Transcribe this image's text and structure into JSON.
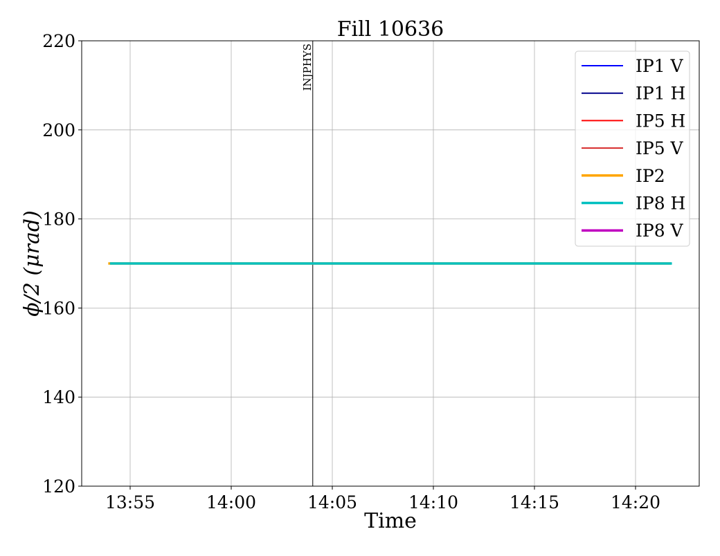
{
  "chart_data": {
    "type": "line",
    "title": "Fill 10636",
    "xlabel": "Time",
    "ylabel": "ϕ/2 (μrad)",
    "ylim": [
      120,
      220
    ],
    "xlim": [
      "13:52:50",
      "14:23:30"
    ],
    "yticks": [
      120,
      140,
      160,
      180,
      200,
      220
    ],
    "xticks": [
      "13:55",
      "14:00",
      "14:05",
      "14:10",
      "14:15",
      "14:20"
    ],
    "grid": true,
    "legend_position": "top-right",
    "annotations": [
      {
        "time": "14:04:02",
        "label": "INJPHYS",
        "color": "#000000"
      }
    ],
    "series": [
      {
        "name": "IP1 V",
        "color": "#0000ff",
        "points": []
      },
      {
        "name": "IP1 H",
        "color": "#00008b",
        "points": []
      },
      {
        "name": "IP5 H",
        "color": "#ff0000",
        "points": []
      },
      {
        "name": "IP5 V",
        "color": "#d62728",
        "points": []
      },
      {
        "name": "IP2",
        "color": "#ffa500",
        "points": [
          [
            "13:53:55",
            170
          ],
          [
            "14:21:45",
            170
          ]
        ]
      },
      {
        "name": "IP8 H",
        "color": "#00c0c0",
        "points": [
          [
            "13:54:00",
            170
          ],
          [
            "14:21:48",
            170
          ]
        ]
      },
      {
        "name": "IP8 V",
        "color": "#c000c0",
        "points": []
      }
    ]
  }
}
